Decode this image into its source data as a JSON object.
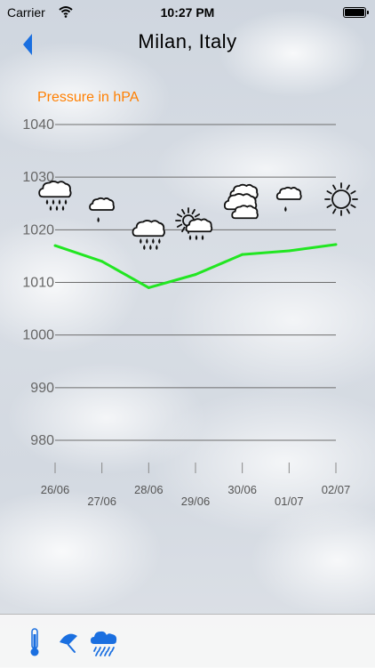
{
  "status_bar": {
    "carrier": "Carrier",
    "time": "10:27 PM"
  },
  "nav": {
    "title": "Milan, Italy"
  },
  "chart_data": {
    "type": "line",
    "title": "Pressure in hPA",
    "xlabel": "",
    "ylabel": "",
    "categories": [
      "26/06",
      "27/06",
      "28/06",
      "29/06",
      "30/06",
      "01/07",
      "02/07"
    ],
    "series": [
      {
        "values": [
          1017,
          1014,
          1009,
          1011.5,
          1015.3,
          1016,
          1017.2
        ]
      }
    ],
    "ylim": [
      980,
      1040
    ],
    "yticks": [
      1040,
      1030,
      1020,
      1010,
      1000,
      990,
      980
    ],
    "grid": true,
    "line_color": "#22e622",
    "weather_icons": [
      "heavy-rain-cloud-icon",
      "light-rain-cloud-icon",
      "heavy-rain-cloud-icon",
      "sun-cloud-rain-icon",
      "overcast-clouds-icon",
      "light-rain-cloud-icon",
      "sun-icon"
    ]
  },
  "tabs": [
    {
      "name": "tab-temperature",
      "icon": "thermometer-icon",
      "color": "#1a6fe0",
      "active": false
    },
    {
      "name": "tab-wind",
      "icon": "umbrella-icon",
      "color": "#1a6fe0",
      "active": false
    },
    {
      "name": "tab-rain",
      "icon": "rain-cloud-icon",
      "color": "#1a6fe0",
      "active": true
    }
  ]
}
